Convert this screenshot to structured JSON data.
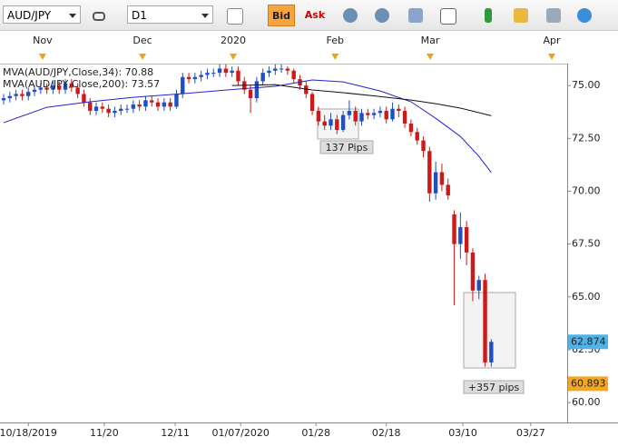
{
  "toolbar": {
    "symbol": "AUD/JPY",
    "timeframe": "D1",
    "bid": "Bid",
    "ask": "Ask"
  },
  "chart_data": {
    "type": "candlestick",
    "series": [
      {
        "name": "AUD/JPY",
        "up_color": "#1f4fc0",
        "down_color": "#cc1a1a",
        "ohlc": [
          [
            74.3,
            74.6,
            74.1,
            74.4
          ],
          [
            74.4,
            74.7,
            74.2,
            74.5
          ],
          [
            74.5,
            74.8,
            74.3,
            74.6
          ],
          [
            74.6,
            74.8,
            74.3,
            74.5
          ],
          [
            74.5,
            74.9,
            74.3,
            74.7
          ],
          [
            74.7,
            75.0,
            74.5,
            74.8
          ],
          [
            74.8,
            75.1,
            74.6,
            74.9
          ],
          [
            74.9,
            75.1,
            74.6,
            74.8
          ],
          [
            74.8,
            75.2,
            74.6,
            75.0
          ],
          [
            75.0,
            75.2,
            74.6,
            74.8
          ],
          [
            74.8,
            75.3,
            74.6,
            75.1
          ],
          [
            75.1,
            75.3,
            74.7,
            74.9
          ],
          [
            74.9,
            75.1,
            74.4,
            74.6
          ],
          [
            74.6,
            74.8,
            74.0,
            74.2
          ],
          [
            74.2,
            74.4,
            73.6,
            73.8
          ],
          [
            73.8,
            74.2,
            73.6,
            74.0
          ],
          [
            74.0,
            74.2,
            73.7,
            73.9
          ],
          [
            73.9,
            74.1,
            73.5,
            73.7
          ],
          [
            73.7,
            74.0,
            73.5,
            73.8
          ],
          [
            73.8,
            74.1,
            73.6,
            73.9
          ],
          [
            73.9,
            74.1,
            73.7,
            73.9
          ],
          [
            73.9,
            74.3,
            73.7,
            74.1
          ],
          [
            74.1,
            74.3,
            73.8,
            74.0
          ],
          [
            74.0,
            74.5,
            73.8,
            74.3
          ],
          [
            74.3,
            74.5,
            74.0,
            74.2
          ],
          [
            74.2,
            74.4,
            73.8,
            74.0
          ],
          [
            74.0,
            74.4,
            73.8,
            74.2
          ],
          [
            74.2,
            74.4,
            73.8,
            74.0
          ],
          [
            74.0,
            74.8,
            73.9,
            74.6
          ],
          [
            74.6,
            75.6,
            74.4,
            75.4
          ],
          [
            75.4,
            75.6,
            75.1,
            75.3
          ],
          [
            75.3,
            75.6,
            75.1,
            75.4
          ],
          [
            75.4,
            75.7,
            75.2,
            75.5
          ],
          [
            75.5,
            75.8,
            75.3,
            75.6
          ],
          [
            75.6,
            75.8,
            75.4,
            75.6
          ],
          [
            75.6,
            76.0,
            75.4,
            75.8
          ],
          [
            75.8,
            76.0,
            75.4,
            75.6
          ],
          [
            75.6,
            75.9,
            75.4,
            75.7
          ],
          [
            75.7,
            75.9,
            75.0,
            75.2
          ],
          [
            75.2,
            75.4,
            74.6,
            74.8
          ],
          [
            74.8,
            75.0,
            73.7,
            74.4
          ],
          [
            74.4,
            75.4,
            74.2,
            75.2
          ],
          [
            75.2,
            75.8,
            75.0,
            75.6
          ],
          [
            75.6,
            75.9,
            75.4,
            75.7
          ],
          [
            75.7,
            76.0,
            75.5,
            75.8
          ],
          [
            75.8,
            76.0,
            75.6,
            75.8
          ],
          [
            75.8,
            75.9,
            75.5,
            75.7
          ],
          [
            75.7,
            75.8,
            75.1,
            75.3
          ],
          [
            75.3,
            75.5,
            74.8,
            75.0
          ],
          [
            75.0,
            75.2,
            74.4,
            74.6
          ],
          [
            74.6,
            74.7,
            73.6,
            73.8
          ],
          [
            73.8,
            74.0,
            73.1,
            73.3
          ],
          [
            73.3,
            73.6,
            72.9,
            73.1
          ],
          [
            73.1,
            73.7,
            72.9,
            73.4
          ],
          [
            73.4,
            73.6,
            72.7,
            72.9
          ],
          [
            72.9,
            73.8,
            72.8,
            73.6
          ],
          [
            73.6,
            74.3,
            73.4,
            73.8
          ],
          [
            73.8,
            74.0,
            73.1,
            73.3
          ],
          [
            73.3,
            73.9,
            73.1,
            73.7
          ],
          [
            73.7,
            73.9,
            73.4,
            73.6
          ],
          [
            73.6,
            73.9,
            73.4,
            73.7
          ],
          [
            73.7,
            74.0,
            73.5,
            73.8
          ],
          [
            73.8,
            74.0,
            73.2,
            73.4
          ],
          [
            73.4,
            74.2,
            73.3,
            73.9
          ],
          [
            73.9,
            74.1,
            73.5,
            73.8
          ],
          [
            73.8,
            74.0,
            73.0,
            73.2
          ],
          [
            73.2,
            73.4,
            72.6,
            72.8
          ],
          [
            72.8,
            73.0,
            72.2,
            72.4
          ],
          [
            72.4,
            72.6,
            71.6,
            71.9
          ],
          [
            71.9,
            72.1,
            69.5,
            69.9
          ],
          [
            69.9,
            71.4,
            69.6,
            70.9
          ],
          [
            70.9,
            71.3,
            70.0,
            70.3
          ],
          [
            70.3,
            70.6,
            69.6,
            69.8
          ],
          [
            68.9,
            69.1,
            64.6,
            67.5
          ],
          [
            67.5,
            69.0,
            66.8,
            68.3
          ],
          [
            68.3,
            68.6,
            66.5,
            67.1
          ],
          [
            67.1,
            67.3,
            64.8,
            65.3
          ],
          [
            65.3,
            66.0,
            64.9,
            65.8
          ],
          [
            65.8,
            66.1,
            61.7,
            61.9
          ],
          [
            61.9,
            63.0,
            61.7,
            62.874
          ]
        ]
      }
    ],
    "lines": [
      {
        "name": "MVA(AUD/JPY,Close,34): 70.88",
        "color": "#2222cc",
        "x": [
          0,
          7,
          14,
          21,
          29,
          38,
          44,
          50,
          55,
          61,
          66,
          70,
          74,
          77,
          79
        ],
        "values": [
          73.24,
          73.97,
          74.23,
          74.44,
          74.61,
          74.83,
          74.96,
          75.26,
          75.17,
          74.74,
          74.23,
          73.45,
          72.59,
          71.65,
          70.88
        ]
      },
      {
        "name": "MVA(AUD/JPY,Close,200): 73.57",
        "color": "#111111",
        "x": [
          37,
          44,
          50,
          55,
          61,
          66,
          70,
          74,
          79
        ],
        "values": [
          75.0,
          75.04,
          74.79,
          74.66,
          74.48,
          74.31,
          74.14,
          73.93,
          73.57
        ]
      }
    ],
    "xlim": [
      -0.59,
      91.3
    ],
    "ylim": [
      59.06,
      75.95
    ],
    "yticks": [
      {
        "value": 60,
        "label": "60.00"
      },
      {
        "value": 62.5,
        "label": "62.50"
      },
      {
        "value": 65,
        "label": "65.00"
      },
      {
        "value": 67.5,
        "label": "67.50"
      },
      {
        "value": 70,
        "label": "70.00"
      },
      {
        "value": 72.5,
        "label": "72.50"
      },
      {
        "value": 75,
        "label": "75.00"
      }
    ],
    "xticks": [
      {
        "value": 4,
        "label": "10/18/2019"
      },
      {
        "value": 16.3,
        "label": "11/20"
      },
      {
        "value": 27.8,
        "label": "12/11"
      },
      {
        "value": 38.4,
        "label": "01/07/2020"
      },
      {
        "value": 50.6,
        "label": "01/28"
      },
      {
        "value": 62,
        "label": "02/18"
      },
      {
        "value": 74.4,
        "label": "03/10"
      },
      {
        "value": 85.4,
        "label": "03/27"
      }
    ],
    "month_ticks": [
      {
        "value": 6.3,
        "label": "Nov"
      },
      {
        "value": 22.5,
        "label": "Dec"
      },
      {
        "value": 37.2,
        "label": "2020"
      },
      {
        "value": 53.7,
        "label": "Feb"
      },
      {
        "value": 69.1,
        "label": "Mar"
      },
      {
        "value": 88.8,
        "label": "Apr"
      }
    ],
    "price_tags": [
      {
        "value": 62.874,
        "label": "62.874",
        "color": "#4fb3e8"
      },
      {
        "value": 60.893,
        "label": "60.893",
        "color": "#f5a623"
      }
    ],
    "annotations": [
      "137 Pips",
      "+357 pips"
    ]
  }
}
